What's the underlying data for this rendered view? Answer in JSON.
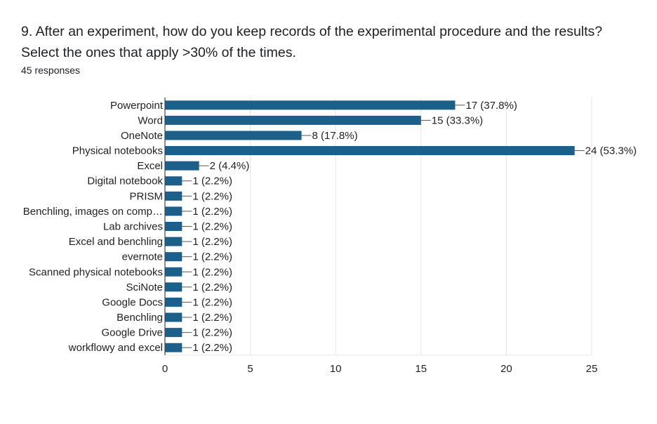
{
  "question": {
    "line1": "9. After an experiment, how do you keep records of the experimental procedure and the results?",
    "line2": "Select the ones that apply >30% of the times."
  },
  "responses_text": "45 responses",
  "colors": {
    "bar": "#1b5f8a",
    "grid": "#e6e6e6",
    "axis": "#444444",
    "text": "#222222"
  },
  "chart_data": {
    "type": "bar",
    "orientation": "horizontal",
    "categories": [
      "Powerpoint",
      "Word",
      "OneNote",
      "Physical notebooks",
      "Excel",
      "Digital notebook",
      "PRISM",
      "Benchling, images on comp…",
      "Lab archives",
      "Excel and benchling",
      "evernote",
      "Scanned physical notebooks",
      "SciNote",
      "Google Docs",
      "Benchling",
      "Google Drive",
      "workflowy and excel"
    ],
    "values": [
      17,
      15,
      8,
      24,
      2,
      1,
      1,
      1,
      1,
      1,
      1,
      1,
      1,
      1,
      1,
      1,
      1
    ],
    "data_labels": [
      "17 (37.8%)",
      "15 (33.3%)",
      "8 (17.8%)",
      "24 (53.3%)",
      "2 (4.4%)",
      "1 (2.2%)",
      "1 (2.2%)",
      "1 (2.2%)",
      "1 (2.2%)",
      "1 (2.2%)",
      "1 (2.2%)",
      "1 (2.2%)",
      "1 (2.2%)",
      "1 (2.2%)",
      "1 (2.2%)",
      "1 (2.2%)",
      "1 (2.2%)"
    ],
    "xlim": [
      0,
      25
    ],
    "xticks": [
      0,
      5,
      10,
      15,
      20,
      25
    ],
    "title": "",
    "xlabel": "",
    "ylabel": "",
    "grid": true,
    "legend": "none"
  }
}
